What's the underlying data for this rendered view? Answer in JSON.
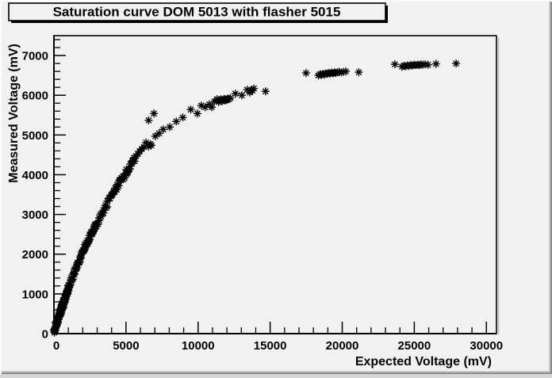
{
  "title": "Saturation curve DOM 5013 with flasher 5015",
  "colors": {
    "canvas_background": "#f1f1f1",
    "frame_background": "#f1f1f1",
    "axis_color": "#000000",
    "marker_color": "#000000",
    "title_box_shadow": "#000000"
  },
  "chart_data": {
    "type": "scatter",
    "title": "Saturation curve DOM 5013 with flasher 5015",
    "xlabel": "Expected Voltage (mV)",
    "ylabel": "Measured Voltage (mV)",
    "xlim": [
      0,
      30700
    ],
    "ylim": [
      0,
      7500
    ],
    "x_major_ticks": [
      0,
      5000,
      10000,
      15000,
      20000,
      25000,
      30000
    ],
    "x_minor_step": 1000,
    "y_major_ticks": [
      0,
      1000,
      2000,
      3000,
      4000,
      5000,
      6000,
      7000
    ],
    "y_minor_step": 200,
    "grid": false,
    "legend": null,
    "marker": "asterisk-8ray",
    "points": [
      [
        5570,
        4430
      ],
      [
        5700,
        4470
      ],
      [
        5820,
        4520
      ],
      [
        5940,
        4590
      ],
      [
        6100,
        4650
      ],
      [
        6250,
        4700
      ],
      [
        6390,
        4810
      ],
      [
        6570,
        4710
      ],
      [
        6680,
        4770
      ],
      [
        6760,
        4740
      ],
      [
        7030,
        4970
      ],
      [
        7300,
        5040
      ],
      [
        7580,
        5140
      ],
      [
        8030,
        5200
      ],
      [
        8490,
        5340
      ],
      [
        8940,
        5440
      ],
      [
        9490,
        5640
      ],
      [
        9950,
        5540
      ],
      [
        10220,
        5740
      ],
      [
        10490,
        5700
      ],
      [
        10770,
        5770
      ],
      [
        10950,
        5700
      ],
      [
        11130,
        5840
      ],
      [
        11310,
        5900
      ],
      [
        11420,
        5830
      ],
      [
        11500,
        5870
      ],
      [
        11580,
        5900
      ],
      [
        11660,
        5850
      ],
      [
        11740,
        5880
      ],
      [
        11820,
        5910
      ],
      [
        11900,
        5870
      ],
      [
        11980,
        5890
      ],
      [
        12060,
        5920
      ],
      [
        12140,
        5900
      ],
      [
        12230,
        5930
      ],
      [
        12590,
        6040
      ],
      [
        13040,
        6000
      ],
      [
        13410,
        6140
      ],
      [
        13590,
        6070
      ],
      [
        13680,
        6130
      ],
      [
        13770,
        6120
      ],
      [
        13870,
        6170
      ],
      [
        14680,
        6100
      ],
      [
        6570,
        5370
      ],
      [
        6940,
        5540
      ],
      [
        17490,
        6560
      ],
      [
        18350,
        6500
      ],
      [
        18460,
        6530
      ],
      [
        18560,
        6510
      ],
      [
        18660,
        6540
      ],
      [
        18760,
        6520
      ],
      [
        18860,
        6550
      ],
      [
        18960,
        6540
      ],
      [
        19060,
        6560
      ],
      [
        19160,
        6545
      ],
      [
        19260,
        6570
      ],
      [
        19360,
        6550
      ],
      [
        19460,
        6575
      ],
      [
        19560,
        6560
      ],
      [
        19680,
        6580
      ],
      [
        19800,
        6585
      ],
      [
        19950,
        6575
      ],
      [
        20100,
        6590
      ],
      [
        20250,
        6600
      ],
      [
        21150,
        6580
      ],
      [
        23650,
        6780
      ],
      [
        24150,
        6720
      ],
      [
        24270,
        6740
      ],
      [
        24390,
        6730
      ],
      [
        24510,
        6750
      ],
      [
        24630,
        6740
      ],
      [
        24750,
        6760
      ],
      [
        24870,
        6750
      ],
      [
        24990,
        6765
      ],
      [
        25110,
        6755
      ],
      [
        25230,
        6770
      ],
      [
        25350,
        6760
      ],
      [
        25470,
        6775
      ],
      [
        25600,
        6770
      ],
      [
        25750,
        6780
      ],
      [
        25950,
        6765
      ],
      [
        26500,
        6790
      ],
      [
        27900,
        6800
      ]
    ],
    "dense_band": {
      "description": "Heavily overlapping markers forming the steep rising part of the saturation curve (0 to ~5600 mV expected)",
      "curve_anchors": [
        [
          0,
          80
        ],
        [
          250,
          340
        ],
        [
          500,
          600
        ],
        [
          750,
          850
        ],
        [
          1000,
          1140
        ],
        [
          1250,
          1390
        ],
        [
          1500,
          1620
        ],
        [
          1750,
          1850
        ],
        [
          2000,
          2060
        ],
        [
          2250,
          2260
        ],
        [
          2500,
          2440
        ],
        [
          2750,
          2620
        ],
        [
          3000,
          2790
        ],
        [
          3250,
          2960
        ],
        [
          3500,
          3130
        ],
        [
          3750,
          3300
        ],
        [
          4000,
          3460
        ],
        [
          4250,
          3610
        ],
        [
          4500,
          3760
        ],
        [
          4750,
          3910
        ],
        [
          5000,
          4050
        ],
        [
          5300,
          4200
        ],
        [
          5600,
          4380
        ]
      ],
      "segments": [
        {
          "x0": 20,
          "x1": 1050,
          "n": 95,
          "x_jitter": 15,
          "y_jitter": 85,
          "seed": 104729
        },
        {
          "x0": 1060,
          "x1": 3000,
          "n": 60,
          "x_jitter": 30,
          "y_jitter": 75,
          "seed": 50331
        },
        {
          "x0": 3010,
          "x1": 5600,
          "n": 48,
          "x_jitter": 40,
          "y_jitter": 75,
          "seed": 78901
        }
      ]
    }
  }
}
